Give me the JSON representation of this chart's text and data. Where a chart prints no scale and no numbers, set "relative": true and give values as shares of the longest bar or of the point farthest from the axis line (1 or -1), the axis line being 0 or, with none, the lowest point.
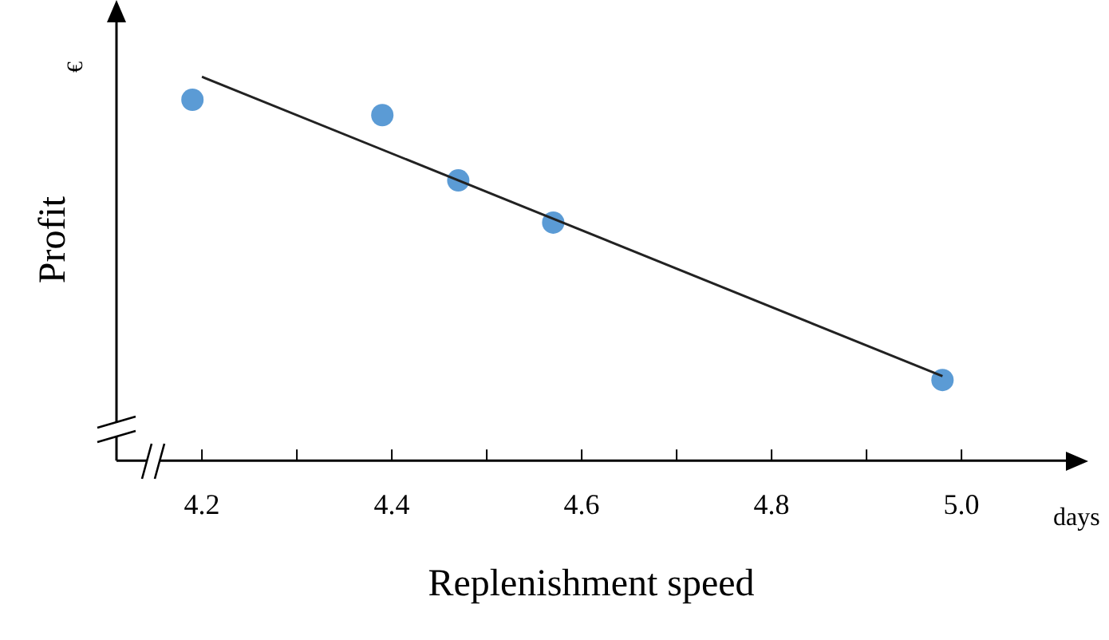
{
  "chart_data": {
    "type": "scatter",
    "xlabel": "Replenishment speed",
    "ylabel": "Profit",
    "relative": true,
    "annotations": [
      "€",
      "days"
    ],
    "xlim": [
      4.11,
      5.11
    ],
    "xticks": [
      4.2,
      {
        "value": 4.3,
        "label": null
      },
      4.4,
      {
        "value": 4.5,
        "label": null
      },
      4.6,
      {
        "value": 4.7,
        "label": null
      },
      4.8,
      {
        "value": 4.9,
        "label": null
      },
      {
        "value": 5,
        "label": "5.0"
      }
    ],
    "series": [
      {
        "color": "#5b9bd5",
        "x": [
          4.19,
          4.39,
          4.47,
          4.57,
          4.98
        ],
        "values": [
          0.94,
          0.9,
          0.73,
          0.62,
          0.21
        ]
      },
      {
        "type": "line",
        "color": "#222222",
        "x": [
          4.2,
          4.98
        ],
        "values": [
          1,
          0.22
        ],
        "marker": "none"
      }
    ],
    "marker": "circle",
    "legend": false,
    "grid": false
  }
}
